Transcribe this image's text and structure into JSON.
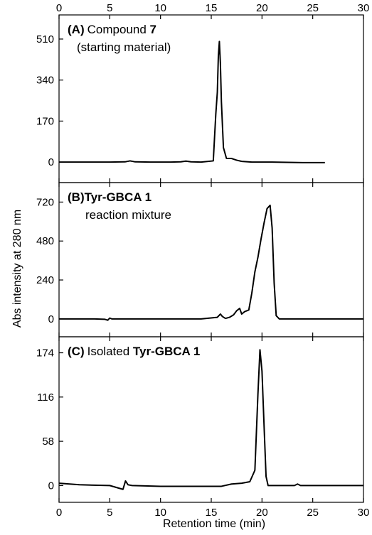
{
  "chart_data": {
    "type": "line",
    "xlabel": "Retention time (min)",
    "ylabel": "Abs intensity at 280 nm",
    "xlim": [
      0,
      30
    ],
    "x_ticks": [
      "0",
      "5",
      "10",
      "15",
      "20",
      "25",
      "30"
    ],
    "panels": [
      {
        "id": "A",
        "label_tag": "(A)",
        "label_text": "Compound ",
        "label_bold": "7",
        "label_line2": "(starting material)",
        "ylim": [
          -85,
          610
        ],
        "y_ticks": [
          0,
          170,
          340,
          510
        ],
        "y_tick_labels": [
          "0",
          "170",
          "340",
          "510"
        ],
        "x": [
          0,
          5,
          6.5,
          7.0,
          7.5,
          9,
          11,
          12,
          12.5,
          13,
          14,
          15.2,
          15.45,
          15.6,
          15.7,
          15.8,
          15.9,
          16.0,
          16.2,
          16.5,
          17.0,
          17.5,
          18.0,
          19,
          21,
          24,
          26.2
        ],
        "y": [
          0,
          0,
          1,
          5,
          1,
          0,
          0,
          1,
          4,
          1,
          0,
          5,
          200,
          290,
          440,
          500,
          410,
          250,
          60,
          15,
          15,
          8,
          3,
          0,
          0,
          -2,
          -2
        ]
      },
      {
        "id": "B",
        "label_tag": "(B)",
        "label_text": "",
        "label_bold": "Tyr-GBCA 1",
        "label_line2": "reaction mixture",
        "ylim": [
          -110,
          840
        ],
        "y_ticks": [
          0,
          240,
          480,
          720
        ],
        "y_tick_labels": [
          "0",
          "240",
          "480",
          "720"
        ],
        "x": [
          0,
          3.5,
          4.5,
          4.8,
          5.0,
          5.2,
          6,
          10,
          14,
          15.6,
          15.9,
          16.1,
          16.4,
          16.8,
          17.2,
          17.5,
          17.8,
          18.0,
          18.3,
          18.7,
          19.0,
          19.3,
          19.6,
          19.9,
          20.2,
          20.5,
          20.8,
          21.0,
          21.2,
          21.4,
          21.7,
          22,
          25,
          30
        ],
        "y": [
          0,
          0,
          -2,
          -8,
          5,
          0,
          0,
          0,
          0,
          10,
          30,
          15,
          3,
          10,
          25,
          50,
          65,
          30,
          45,
          55,
          160,
          290,
          380,
          490,
          590,
          680,
          700,
          560,
          220,
          20,
          0,
          0,
          0,
          0
        ]
      },
      {
        "id": "C",
        "label_tag": "(C)",
        "label_text": "Isolated ",
        "label_bold": "Tyr-GBCA 1",
        "label_line2": "",
        "ylim": [
          -22,
          195
        ],
        "y_ticks": [
          0,
          58,
          116,
          174
        ],
        "y_tick_labels": [
          "0",
          "58",
          "116",
          "174"
        ],
        "x": [
          0,
          2,
          5,
          6.3,
          6.55,
          6.8,
          7.2,
          10,
          14,
          16,
          17,
          18,
          18.8,
          19.3,
          19.6,
          19.8,
          20.0,
          20.2,
          20.4,
          20.6,
          21,
          22,
          23.2,
          23.5,
          23.8,
          25,
          30
        ],
        "y": [
          3,
          1,
          0,
          -5,
          6,
          1,
          0,
          -1,
          -1,
          -1,
          2,
          3,
          5,
          20,
          120,
          178,
          150,
          80,
          12,
          0,
          0,
          0,
          0,
          2,
          0,
          0,
          0
        ]
      }
    ]
  }
}
